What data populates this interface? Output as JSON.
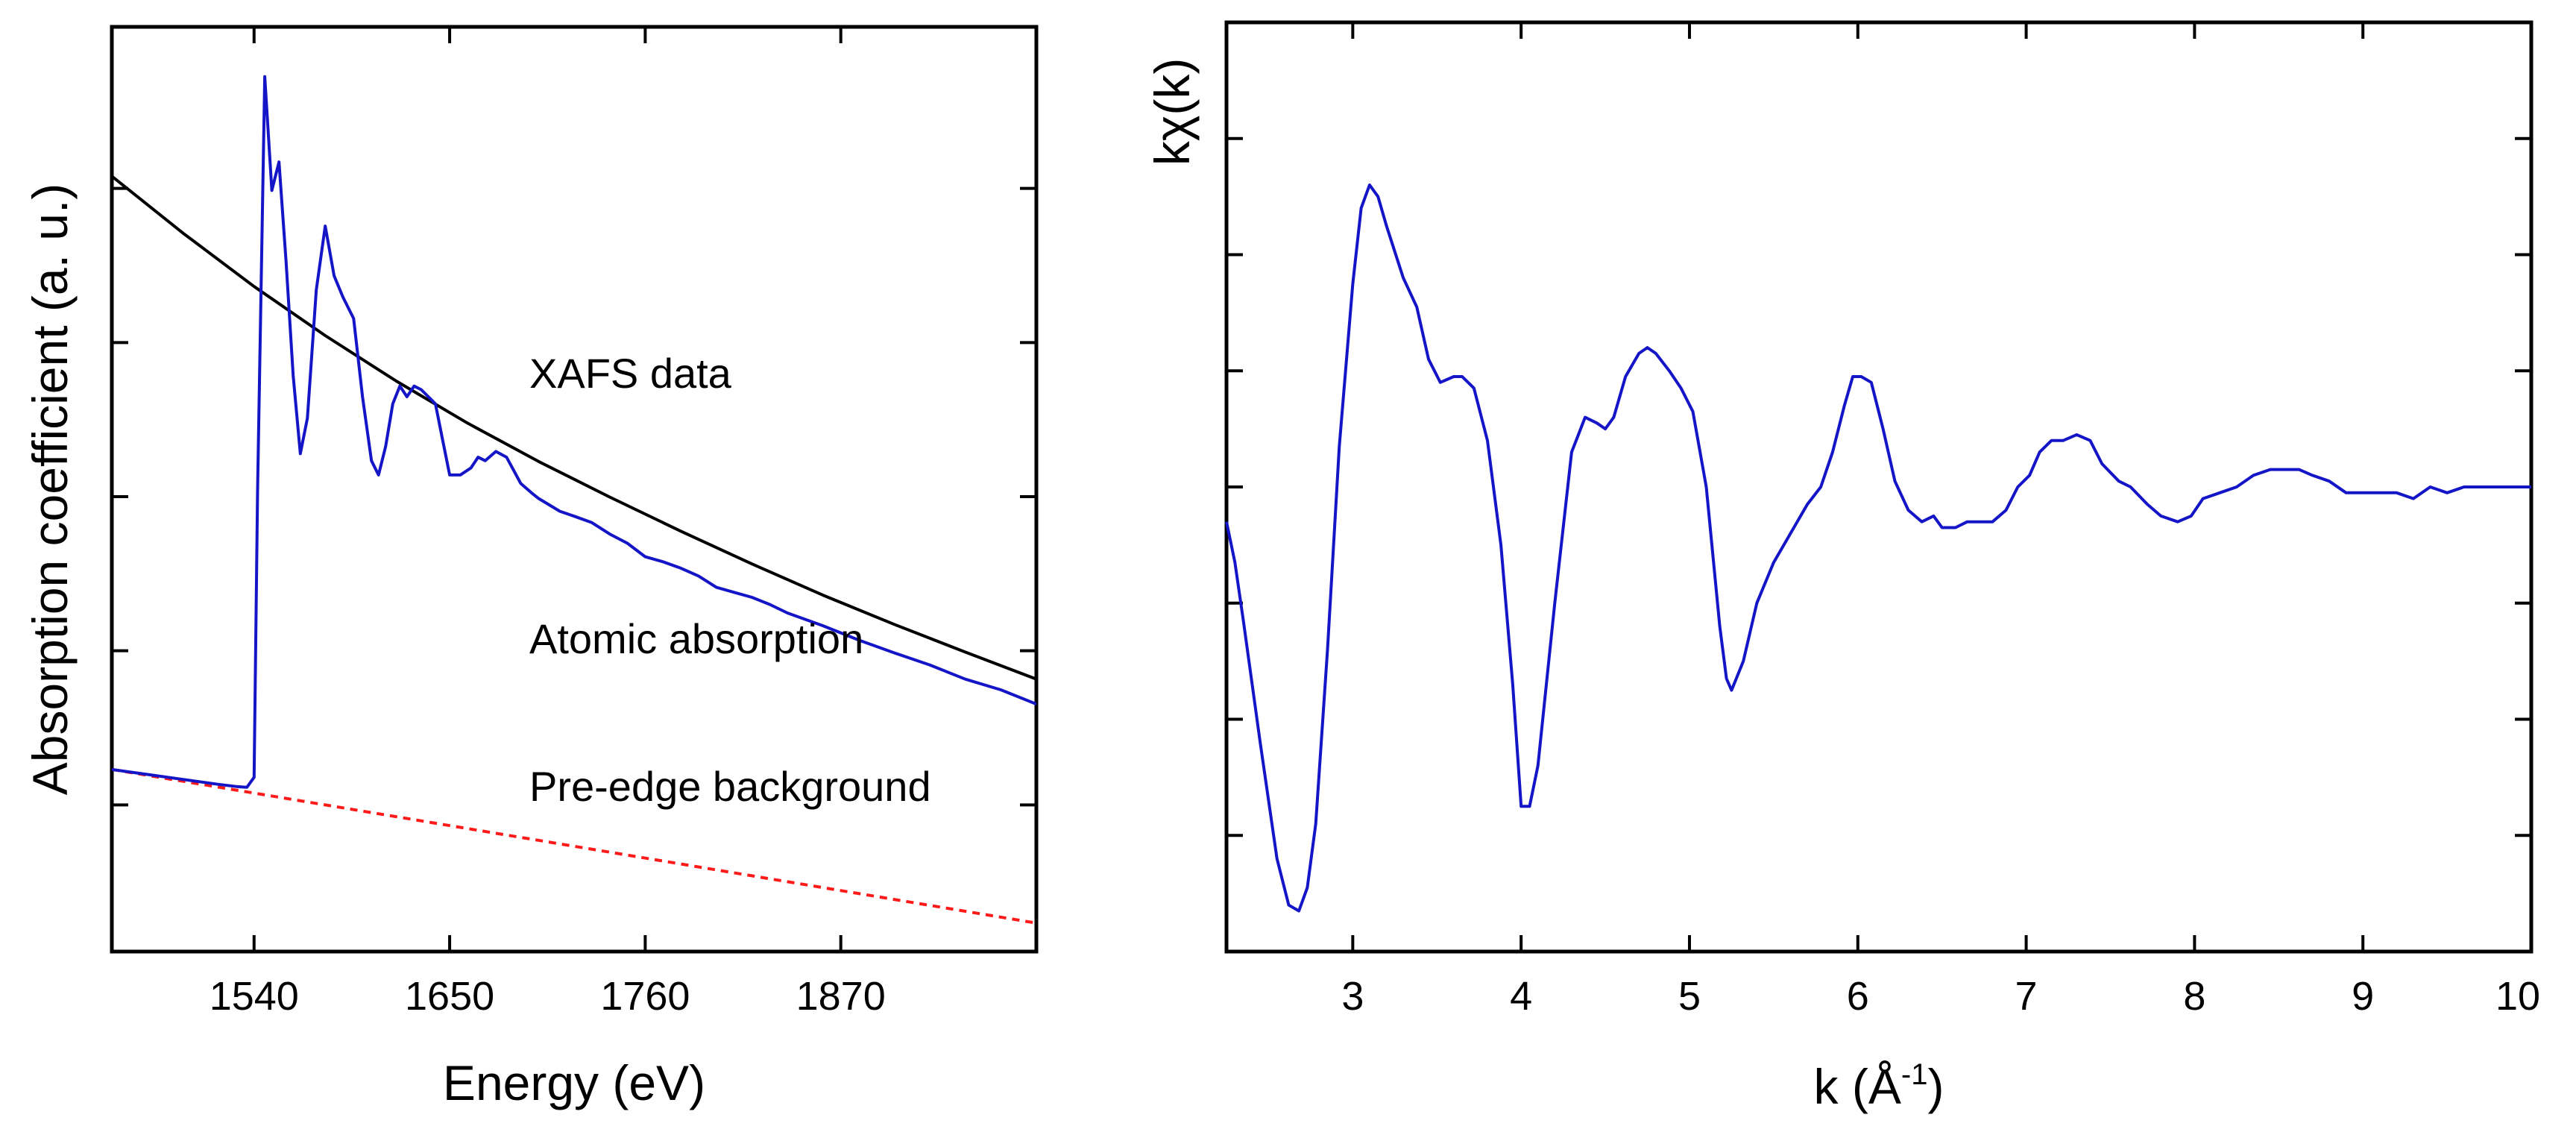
{
  "chart_data": [
    {
      "type": "line",
      "title": "",
      "xlabel": "Energy (eV)",
      "ylabel": "Absorption coefficient (a. u.)",
      "xlim": [
        1460,
        1980
      ],
      "ylim": [
        -0.15,
        1.15
      ],
      "x_ticks": [
        1540,
        1650,
        1760,
        1870
      ],
      "y_tick_labels_shown": false,
      "grid": false,
      "colors": {
        "xafs": "#1515c8",
        "atomic": "#000000",
        "preedge": "#ff1a1a"
      },
      "annotations": [
        {
          "text": "XAFS data",
          "color": "#1515c8"
        },
        {
          "text": "Atomic absorption",
          "color": "#000000"
        },
        {
          "text": "Pre-edge background",
          "color": "#ff1a1a"
        }
      ],
      "series": [
        {
          "name": "XAFS data",
          "x": [
            1460,
            1480,
            1500,
            1520,
            1530,
            1536,
            1540,
            1542,
            1546,
            1550,
            1554,
            1558,
            1562,
            1566,
            1570,
            1575,
            1580,
            1585,
            1590,
            1596,
            1601,
            1606,
            1610,
            1614,
            1618,
            1622,
            1626,
            1630,
            1634,
            1638,
            1642,
            1646,
            1650,
            1656,
            1662,
            1666,
            1670,
            1676,
            1682,
            1690,
            1696,
            1700,
            1706,
            1712,
            1720,
            1730,
            1740,
            1750,
            1760,
            1770,
            1780,
            1790,
            1800,
            1810,
            1820,
            1830,
            1840,
            1860,
            1880,
            1900,
            1920,
            1940,
            1960,
            1980
          ],
          "y": [
            0.106,
            0.099,
            0.092,
            0.085,
            0.082,
            0.081,
            0.095,
            0.5,
            1.08,
            0.92,
            0.96,
            0.82,
            0.66,
            0.55,
            0.6,
            0.78,
            0.87,
            0.8,
            0.77,
            0.74,
            0.63,
            0.54,
            0.52,
            0.56,
            0.62,
            0.645,
            0.63,
            0.645,
            0.64,
            0.63,
            0.62,
            0.57,
            0.52,
            0.52,
            0.53,
            0.545,
            0.54,
            0.553,
            0.545,
            0.508,
            0.495,
            0.487,
            0.478,
            0.469,
            0.462,
            0.453,
            0.437,
            0.424,
            0.405,
            0.398,
            0.389,
            0.378,
            0.362,
            0.355,
            0.348,
            0.338,
            0.326,
            0.308,
            0.288,
            0.27,
            0.253,
            0.233,
            0.218,
            0.198
          ]
        },
        {
          "name": "Atomic absorption",
          "x": [
            1460,
            1500,
            1540,
            1580,
            1620,
            1660,
            1700,
            1740,
            1780,
            1820,
            1860,
            1900,
            1940,
            1980
          ],
          "y": [
            0.94,
            0.86,
            0.785,
            0.716,
            0.652,
            0.593,
            0.539,
            0.489,
            0.441,
            0.395,
            0.351,
            0.31,
            0.271,
            0.233
          ]
        },
        {
          "name": "Pre-edge background",
          "x": [
            1460,
            1980
          ],
          "y": [
            0.106,
            -0.11
          ]
        }
      ]
    },
    {
      "type": "line",
      "title": "",
      "xlabel": "k (Å",
      "xlabel_superscript": "-1",
      "xlabel_suffix": ")",
      "ylabel": "kχ(k)",
      "xlim": [
        2.25,
        10
      ],
      "ylim": [
        -0.8,
        0.8
      ],
      "x_ticks": [
        3,
        4,
        5,
        6,
        7,
        8,
        9,
        10
      ],
      "y_tick_labels_shown": false,
      "grid": false,
      "colors": {
        "line": "#1515c8"
      },
      "series": [
        {
          "name": "kχ(k)",
          "x": [
            2.25,
            2.3,
            2.35,
            2.45,
            2.55,
            2.62,
            2.68,
            2.73,
            2.78,
            2.85,
            2.92,
            3.0,
            3.05,
            3.1,
            3.15,
            3.2,
            3.3,
            3.38,
            3.45,
            3.52,
            3.6,
            3.65,
            3.72,
            3.8,
            3.88,
            3.95,
            4.0,
            4.05,
            4.1,
            4.2,
            4.3,
            4.38,
            4.45,
            4.5,
            4.55,
            4.62,
            4.7,
            4.75,
            4.8,
            4.88,
            4.95,
            5.02,
            5.1,
            5.18,
            5.22,
            5.25,
            5.32,
            5.4,
            5.5,
            5.6,
            5.7,
            5.78,
            5.85,
            5.92,
            5.97,
            6.02,
            6.08,
            6.15,
            6.22,
            6.3,
            6.38,
            6.45,
            6.5,
            6.58,
            6.65,
            6.72,
            6.8,
            6.88,
            6.95,
            7.02,
            7.08,
            7.15,
            7.22,
            7.3,
            7.38,
            7.45,
            7.55,
            7.62,
            7.72,
            7.8,
            7.9,
            7.98,
            8.05,
            8.15,
            8.25,
            8.35,
            8.45,
            8.55,
            8.62,
            8.7,
            8.8,
            8.9,
            9.0,
            9.1,
            9.2,
            9.3,
            9.4,
            9.5,
            9.6,
            9.7,
            9.8,
            9.9,
            10.0
          ],
          "y": [
            -0.06,
            -0.13,
            -0.23,
            -0.44,
            -0.64,
            -0.72,
            -0.73,
            -0.69,
            -0.58,
            -0.28,
            0.07,
            0.35,
            0.48,
            0.52,
            0.5,
            0.45,
            0.36,
            0.31,
            0.22,
            0.18,
            0.19,
            0.19,
            0.17,
            0.08,
            -0.1,
            -0.34,
            -0.55,
            -0.55,
            -0.48,
            -0.2,
            0.06,
            0.12,
            0.11,
            0.1,
            0.12,
            0.19,
            0.23,
            0.24,
            0.23,
            0.2,
            0.17,
            0.13,
            0.0,
            -0.24,
            -0.33,
            -0.35,
            -0.3,
            -0.2,
            -0.13,
            -0.08,
            -0.03,
            0.0,
            0.06,
            0.14,
            0.19,
            0.19,
            0.18,
            0.1,
            0.01,
            -0.04,
            -0.06,
            -0.05,
            -0.07,
            -0.07,
            -0.06,
            -0.06,
            -0.06,
            -0.04,
            0.0,
            0.02,
            0.06,
            0.08,
            0.08,
            0.09,
            0.08,
            0.04,
            0.01,
            0.0,
            -0.03,
            -0.05,
            -0.06,
            -0.05,
            -0.02,
            -0.01,
            0.0,
            0.02,
            0.03,
            0.03,
            0.03,
            0.02,
            0.01,
            -0.01,
            -0.01,
            -0.01,
            -0.01,
            -0.02,
            0.0,
            -0.01,
            0.0,
            0.0,
            0.0,
            0.0,
            0.0
          ]
        }
      ]
    }
  ]
}
